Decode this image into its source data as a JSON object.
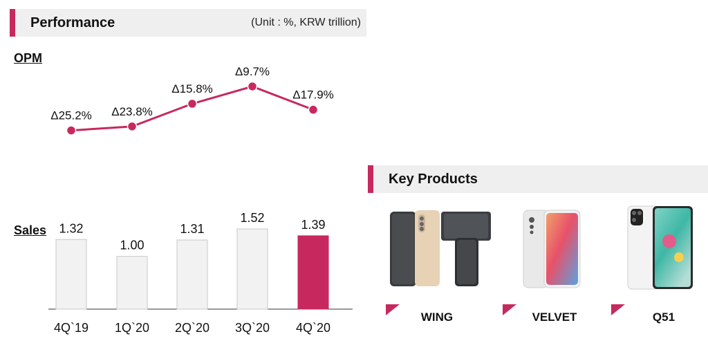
{
  "performance": {
    "title": "Performance",
    "unit": "(Unit : %, KRW trillion)"
  },
  "key_products": {
    "title": "Key Products",
    "items": [
      {
        "name": "WING"
      },
      {
        "name": "VELVET"
      },
      {
        "name": "Q51"
      }
    ]
  },
  "colors": {
    "accent": "#c7295e",
    "bar": "#f2f2f2",
    "header_bg": "#efefef"
  },
  "chart_data": [
    {
      "type": "line",
      "title": "OPM",
      "categories": [
        "4Q`19",
        "1Q`20",
        "2Q`20",
        "3Q`20",
        "4Q`20"
      ],
      "values": [
        -25.2,
        -23.8,
        -15.8,
        -9.7,
        -17.9
      ],
      "labels": [
        "Δ25.2%",
        "Δ23.8%",
        "Δ15.8%",
        "Δ9.7%",
        "Δ17.9%"
      ]
    },
    {
      "type": "bar",
      "title": "Sales",
      "categories": [
        "4Q`19",
        "1Q`20",
        "2Q`20",
        "3Q`20",
        "4Q`20"
      ],
      "values": [
        1.32,
        1.0,
        1.31,
        1.52,
        1.39
      ],
      "labels": [
        "1.32",
        "1.00",
        "1.31",
        "1.52",
        "1.39"
      ],
      "highlight_index": 4
    }
  ]
}
